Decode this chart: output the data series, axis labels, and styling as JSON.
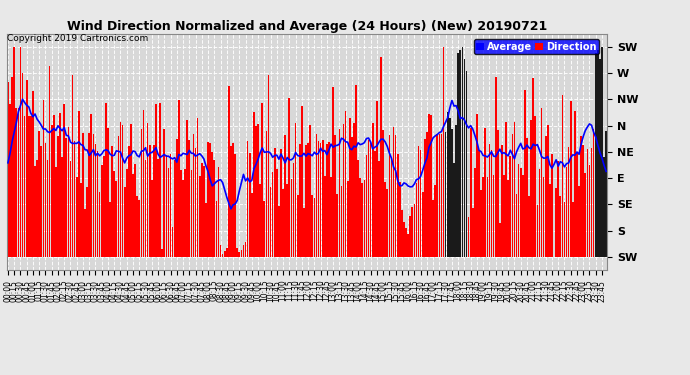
{
  "title": "Wind Direction Normalized and Average (24 Hours) (New) 20190721",
  "copyright": "Copyright 2019 Cartronics.com",
  "legend_labels": [
    "Average",
    "Direction"
  ],
  "legend_colors": [
    "#0000ff",
    "#ff0000"
  ],
  "ytick_labels": [
    "SW",
    "S",
    "SE",
    "E",
    "NE",
    "N",
    "NW",
    "W",
    "SW"
  ],
  "ytick_values": [
    0,
    45,
    90,
    135,
    180,
    225,
    270,
    315,
    360
  ],
  "ylim": [
    -22.5,
    382.5
  ],
  "background_color": "#e8e8e8",
  "plot_bg_color": "#d8d8d8",
  "grid_color": "#ffffff",
  "bar_color": "#ff0000",
  "line_color": "#0000ff",
  "dark_bar_color": "#1a1a1a"
}
